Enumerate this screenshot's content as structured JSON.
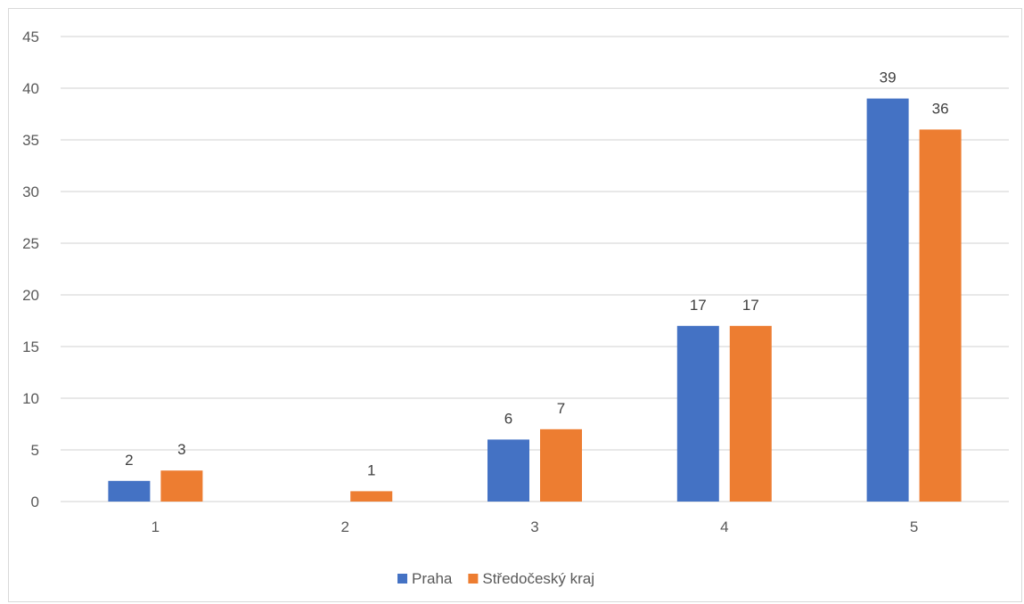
{
  "chart_data": {
    "type": "bar",
    "title": "",
    "xlabel": "",
    "ylabel": "",
    "categories": [
      "1",
      "2",
      "3",
      "4",
      "5"
    ],
    "series": [
      {
        "name": "Praha",
        "color": "#4472C4",
        "values": [
          2,
          0,
          6,
          17,
          39
        ],
        "labels": [
          "2",
          null,
          "6",
          "17",
          "39"
        ]
      },
      {
        "name": "Středočeský kraj",
        "color": "#ED7D31",
        "values": [
          3,
          1,
          7,
          17,
          36
        ],
        "labels": [
          "3",
          "1",
          "7",
          "17",
          "36"
        ]
      }
    ],
    "ylim": [
      0,
      45
    ],
    "yticks": [
      "0",
      "5",
      "10",
      "15",
      "20",
      "25",
      "30",
      "35",
      "40",
      "45"
    ],
    "grid": true,
    "gridline_color": "#d9d9d9",
    "legend_position": "bottom"
  }
}
